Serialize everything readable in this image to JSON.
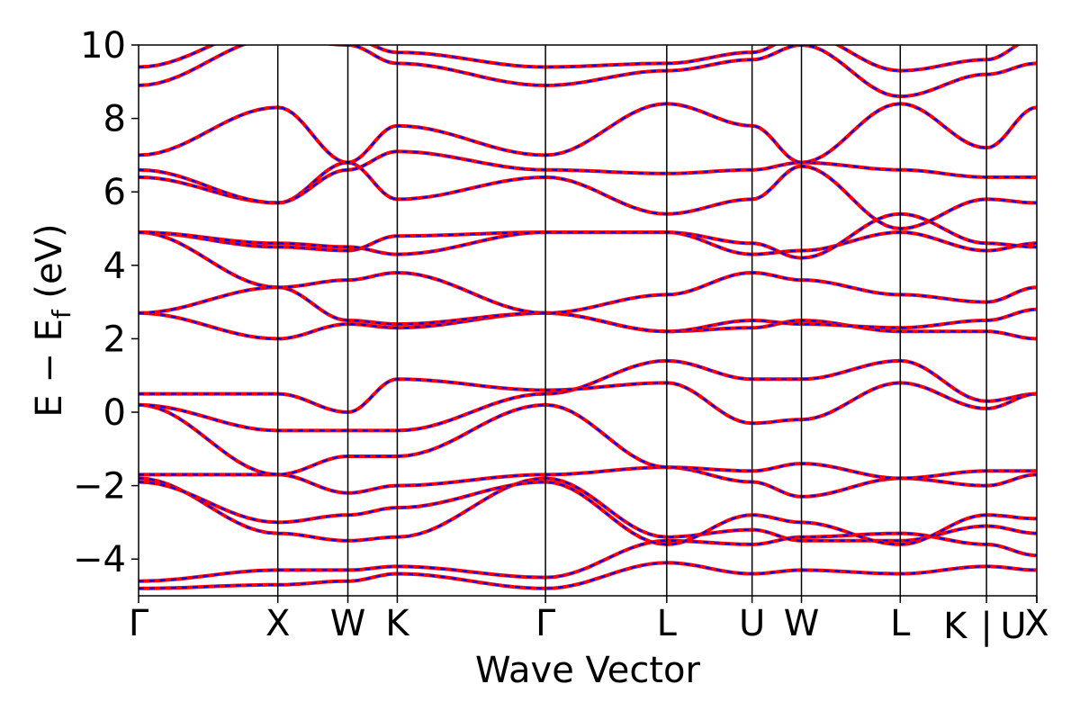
{
  "chart_data": {
    "type": "line",
    "title": "",
    "xlabel": "Wave Vector",
    "ylabel_main": "E − E",
    "ylabel_sub": "f",
    "ylabel_unit": "(eV)",
    "ylim": [
      -5,
      10
    ],
    "yticks": [
      -4,
      -2,
      0,
      2,
      4,
      6,
      8,
      10
    ],
    "ytick_labels": [
      "−4",
      "−2",
      "0",
      "2",
      "4",
      "6",
      "8",
      "10"
    ],
    "xlim": [
      0,
      1
    ],
    "kpoints": [
      {
        "label": "Γ",
        "x": 0.0
      },
      {
        "label": "X",
        "x": 0.155
      },
      {
        "label": "W",
        "x": 0.233
      },
      {
        "label": "K",
        "x": 0.288
      },
      {
        "label": "Γ",
        "x": 0.453
      },
      {
        "label": "L",
        "x": 0.588
      },
      {
        "label": "U",
        "x": 0.683
      },
      {
        "label": "W",
        "x": 0.738
      },
      {
        "label": "L",
        "x": 0.848
      },
      {
        "label": "K",
        "x": 0.944
      },
      {
        "label": "U",
        "x": 1.0
      },
      {
        "label": "X",
        "x": 1.0
      }
    ],
    "kpoint_label_text": [
      "Γ",
      "X",
      "W",
      "K",
      "Γ",
      "L",
      "U",
      "W",
      "L",
      "K",
      "|",
      "U",
      "X"
    ],
    "line_colors": {
      "series_a": "#ff0000",
      "series_b": "#0000ff"
    },
    "series": [
      {
        "name": "",
        "color": "#ff0000",
        "style": "solid",
        "bands": [
          [
            [
              0,
              -4.6
            ],
            [
              0.155,
              -4.3
            ],
            [
              0.233,
              -4.3
            ],
            [
              0.288,
              -4.2
            ],
            [
              0.453,
              -4.5
            ],
            [
              0.588,
              -3.5
            ],
            [
              0.683,
              -3.6
            ],
            [
              0.738,
              -3.4
            ],
            [
              0.848,
              -3.3
            ],
            [
              0.944,
              -3.6
            ],
            [
              1.0,
              -3.9
            ]
          ],
          [
            [
              0,
              -4.8
            ],
            [
              0.155,
              -4.7
            ],
            [
              0.233,
              -4.6
            ],
            [
              0.288,
              -4.4
            ],
            [
              0.453,
              -4.8
            ],
            [
              0.588,
              -4.1
            ],
            [
              0.683,
              -4.4
            ],
            [
              0.738,
              -4.3
            ],
            [
              0.848,
              -4.4
            ],
            [
              0.944,
              -4.2
            ],
            [
              1.0,
              -4.3
            ]
          ],
          [
            [
              0,
              -1.8
            ],
            [
              0.155,
              -3.3
            ],
            [
              0.233,
              -3.5
            ],
            [
              0.288,
              -3.4
            ],
            [
              0.453,
              -1.8
            ],
            [
              0.588,
              -3.4
            ],
            [
              0.683,
              -3.2
            ],
            [
              0.738,
              -3.5
            ],
            [
              0.848,
              -3.5
            ],
            [
              0.944,
              -3.1
            ],
            [
              1.0,
              -3.3
            ]
          ],
          [
            [
              0,
              -1.9
            ],
            [
              0.155,
              -3.0
            ],
            [
              0.233,
              -2.8
            ],
            [
              0.288,
              -2.6
            ],
            [
              0.453,
              -1.9
            ],
            [
              0.588,
              -3.6
            ],
            [
              0.683,
              -2.8
            ],
            [
              0.738,
              -3.0
            ],
            [
              0.848,
              -3.6
            ],
            [
              0.944,
              -2.8
            ],
            [
              1.0,
              -2.9
            ]
          ],
          [
            [
              0,
              -1.7
            ],
            [
              0.155,
              -1.7
            ],
            [
              0.233,
              -2.2
            ],
            [
              0.288,
              -2.0
            ],
            [
              0.453,
              -1.7
            ],
            [
              0.588,
              -1.5
            ],
            [
              0.683,
              -1.9
            ],
            [
              0.738,
              -2.3
            ],
            [
              0.848,
              -1.8
            ],
            [
              0.944,
              -2.0
            ],
            [
              1.0,
              -1.7
            ]
          ],
          [
            [
              0,
              0.2
            ],
            [
              0.155,
              -1.7
            ],
            [
              0.233,
              -1.2
            ],
            [
              0.288,
              -1.2
            ],
            [
              0.453,
              0.2
            ],
            [
              0.588,
              -1.5
            ],
            [
              0.683,
              -1.6
            ],
            [
              0.738,
              -1.4
            ],
            [
              0.848,
              -1.8
            ],
            [
              0.944,
              -1.6
            ],
            [
              1.0,
              -1.6
            ]
          ],
          [
            [
              0,
              0.2
            ],
            [
              0.155,
              -0.5
            ],
            [
              0.233,
              -0.5
            ],
            [
              0.288,
              -0.5
            ],
            [
              0.453,
              0.5
            ],
            [
              0.588,
              1.4
            ],
            [
              0.683,
              0.9
            ],
            [
              0.738,
              0.9
            ],
            [
              0.848,
              1.4
            ],
            [
              0.944,
              0.3
            ],
            [
              1.0,
              0.5
            ]
          ],
          [
            [
              0,
              0.5
            ],
            [
              0.155,
              0.5
            ],
            [
              0.233,
              0.0
            ],
            [
              0.288,
              0.9
            ],
            [
              0.453,
              0.6
            ],
            [
              0.588,
              0.8
            ],
            [
              0.683,
              -0.3
            ],
            [
              0.738,
              -0.2
            ],
            [
              0.848,
              0.8
            ],
            [
              0.944,
              0.1
            ],
            [
              1.0,
              0.5
            ]
          ],
          [
            [
              0,
              2.7
            ],
            [
              0.155,
              2.0
            ],
            [
              0.233,
              2.4
            ],
            [
              0.288,
              2.3
            ],
            [
              0.453,
              2.7
            ],
            [
              0.588,
              2.2
            ],
            [
              0.683,
              2.3
            ],
            [
              0.738,
              2.5
            ],
            [
              0.848,
              2.2
            ],
            [
              0.944,
              2.2
            ],
            [
              1.0,
              2.0
            ]
          ],
          [
            [
              0,
              2.7
            ],
            [
              0.155,
              3.4
            ],
            [
              0.233,
              2.5
            ],
            [
              0.288,
              2.4
            ],
            [
              0.453,
              2.7
            ],
            [
              0.588,
              2.2
            ],
            [
              0.683,
              2.5
            ],
            [
              0.738,
              2.4
            ],
            [
              0.848,
              2.3
            ],
            [
              0.944,
              2.5
            ],
            [
              1.0,
              2.8
            ]
          ],
          [
            [
              0,
              4.9
            ],
            [
              0.155,
              3.4
            ],
            [
              0.233,
              3.6
            ],
            [
              0.288,
              3.8
            ],
            [
              0.453,
              2.7
            ],
            [
              0.588,
              3.2
            ],
            [
              0.683,
              3.8
            ],
            [
              0.738,
              3.6
            ],
            [
              0.848,
              3.2
            ],
            [
              0.944,
              3.0
            ],
            [
              1.0,
              3.4
            ]
          ],
          [
            [
              0,
              4.9
            ],
            [
              0.155,
              4.5
            ],
            [
              0.233,
              4.4
            ],
            [
              0.288,
              4.8
            ],
            [
              0.453,
              4.9
            ],
            [
              0.588,
              4.9
            ],
            [
              0.683,
              4.3
            ],
            [
              0.738,
              4.4
            ],
            [
              0.848,
              4.9
            ],
            [
              0.944,
              4.4
            ],
            [
              1.0,
              4.6
            ]
          ],
          [
            [
              0,
              4.9
            ],
            [
              0.155,
              4.6
            ],
            [
              0.233,
              4.5
            ],
            [
              0.288,
              4.3
            ],
            [
              0.453,
              4.9
            ],
            [
              0.588,
              4.9
            ],
            [
              0.683,
              4.6
            ],
            [
              0.738,
              4.2
            ],
            [
              0.848,
              5.4
            ],
            [
              0.944,
              4.6
            ],
            [
              1.0,
              4.5
            ]
          ],
          [
            [
              0,
              6.4
            ],
            [
              0.155,
              5.7
            ],
            [
              0.233,
              6.8
            ],
            [
              0.288,
              5.8
            ],
            [
              0.453,
              6.4
            ],
            [
              0.588,
              5.4
            ],
            [
              0.683,
              5.8
            ],
            [
              0.738,
              6.7
            ],
            [
              0.848,
              5.0
            ],
            [
              0.944,
              5.8
            ],
            [
              1.0,
              5.7
            ]
          ],
          [
            [
              0,
              6.6
            ],
            [
              0.155,
              5.7
            ],
            [
              0.233,
              6.6
            ],
            [
              0.288,
              7.1
            ],
            [
              0.453,
              6.6
            ],
            [
              0.588,
              6.5
            ],
            [
              0.683,
              6.6
            ],
            [
              0.738,
              6.8
            ],
            [
              0.848,
              6.6
            ],
            [
              0.944,
              6.4
            ],
            [
              1.0,
              6.4
            ]
          ],
          [
            [
              0,
              7.0
            ],
            [
              0.155,
              8.3
            ],
            [
              0.233,
              6.8
            ],
            [
              0.288,
              7.8
            ],
            [
              0.453,
              7.0
            ],
            [
              0.588,
              8.4
            ],
            [
              0.683,
              7.8
            ],
            [
              0.738,
              6.8
            ],
            [
              0.848,
              8.4
            ],
            [
              0.944,
              7.2
            ],
            [
              1.0,
              8.3
            ]
          ],
          [
            [
              0,
              8.9
            ],
            [
              0.155,
              10.2
            ],
            [
              0.233,
              10.0
            ],
            [
              0.288,
              9.5
            ],
            [
              0.453,
              8.9
            ],
            [
              0.588,
              9.3
            ],
            [
              0.683,
              9.6
            ],
            [
              0.738,
              10.0
            ],
            [
              0.848,
              8.6
            ],
            [
              0.944,
              9.2
            ],
            [
              1.0,
              9.5
            ]
          ],
          [
            [
              0,
              9.4
            ],
            [
              0.155,
              10.5
            ],
            [
              0.233,
              10.2
            ],
            [
              0.288,
              9.8
            ],
            [
              0.453,
              9.4
            ],
            [
              0.588,
              9.5
            ],
            [
              0.683,
              9.8
            ],
            [
              0.738,
              10.3
            ],
            [
              0.848,
              9.3
            ],
            [
              0.944,
              9.6
            ],
            [
              1.0,
              10.2
            ]
          ]
        ]
      }
    ]
  }
}
